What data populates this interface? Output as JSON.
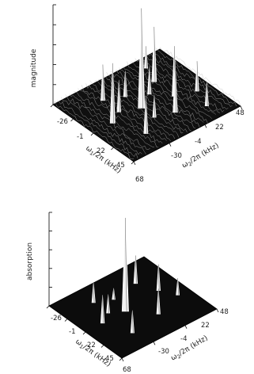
{
  "chart_data": [
    {
      "type": "surface",
      "ylabel": "magnitude",
      "x_axis": {
        "label": "ω1/2π (kHz)",
        "label_parts": {
          "symbol": "ω",
          "sub": "1",
          "rest": "/2π (kHz)"
        },
        "ticks": [
          "-26",
          "-1",
          "22",
          "45",
          "68"
        ]
      },
      "y_axis": {
        "label": "ω2/2π (kHz)",
        "label_parts": {
          "symbol": "ω",
          "sub": "2",
          "rest": "/2π (kHz)"
        },
        "ticks": [
          "-30",
          "-4",
          "22",
          "48"
        ]
      },
      "z_ticks": 5,
      "floor": "noisy",
      "floor_color": "#101010",
      "line_color": "#ffffff",
      "peaks": [
        {
          "u": 0.5,
          "v": 0.45,
          "h": 1.0
        },
        {
          "u": 0.5,
          "v": 0.18,
          "h": 0.6
        },
        {
          "u": 0.3,
          "v": 0.72,
          "h": 0.55
        },
        {
          "u": 0.55,
          "v": 0.72,
          "h": 0.5
        },
        {
          "u": 0.72,
          "v": 0.6,
          "h": 0.48
        },
        {
          "u": 0.78,
          "v": 0.28,
          "h": 0.38
        },
        {
          "u": 0.22,
          "v": 0.3,
          "h": 0.36
        },
        {
          "u": 0.42,
          "v": 0.3,
          "h": 0.32
        },
        {
          "u": 0.62,
          "v": 0.88,
          "h": 0.3
        },
        {
          "u": 0.3,
          "v": 0.45,
          "h": 0.26
        },
        {
          "u": 0.82,
          "v": 0.82,
          "h": 0.24
        },
        {
          "u": 0.12,
          "v": 0.78,
          "h": 0.22
        },
        {
          "u": 0.66,
          "v": 0.45,
          "h": 0.22
        },
        {
          "u": 0.4,
          "v": 0.6,
          "h": 0.28
        }
      ]
    },
    {
      "type": "surface",
      "ylabel": "absorption",
      "x_axis": {
        "label": "ω1/2π (kHz)",
        "label_parts": {
          "symbol": "ω",
          "sub": "1",
          "rest": "/2π (kHz)"
        },
        "ticks": [
          "-26",
          "-1",
          "22",
          "45",
          "68"
        ]
      },
      "y_axis": {
        "label": "ω2/2π (kHz)",
        "label_parts": {
          "symbol": "ω",
          "sub": "2",
          "rest": "/2π (kHz)"
        },
        "ticks": [
          "-30",
          "-4",
          "22",
          "48"
        ]
      },
      "z_ticks": 5,
      "floor": "flat",
      "floor_color": "#0c0c0c",
      "line_color": "#ffffff",
      "peaks": [
        {
          "u": 0.5,
          "v": 0.42,
          "h": 1.0
        },
        {
          "u": 0.5,
          "v": 0.18,
          "h": 0.3
        },
        {
          "u": 0.25,
          "v": 0.72,
          "h": 0.3
        },
        {
          "u": 0.46,
          "v": 0.8,
          "h": 0.28
        },
        {
          "u": 0.72,
          "v": 0.6,
          "h": 0.27
        },
        {
          "u": 0.78,
          "v": 0.28,
          "h": 0.24
        },
        {
          "u": 0.22,
          "v": 0.3,
          "h": 0.22
        },
        {
          "u": 0.42,
          "v": 0.3,
          "h": 0.2
        },
        {
          "u": 0.62,
          "v": 0.88,
          "h": 0.18
        },
        {
          "u": 0.3,
          "v": 0.45,
          "h": 0.12
        }
      ]
    }
  ]
}
